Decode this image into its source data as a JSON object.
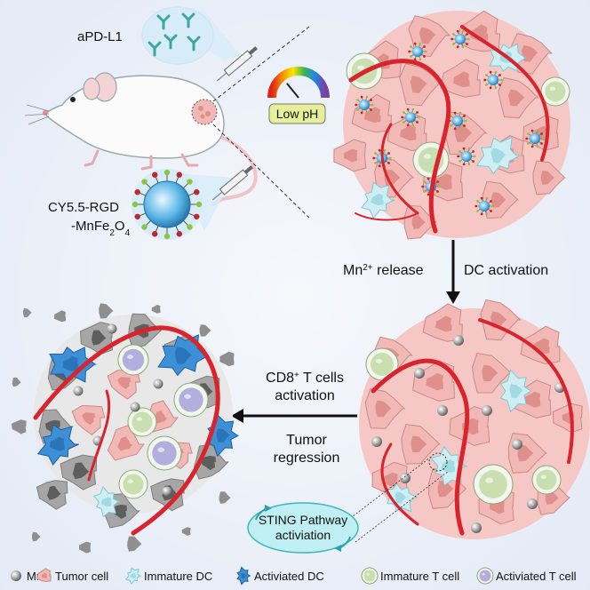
{
  "labels": {
    "apdl1": "aPD-L1",
    "cy55_line1": "CY5.5-RGD",
    "cy55_line2_pre": "-MnFe",
    "cy55_sub1": "2",
    "cy55_mid": "O",
    "cy55_sub2": "4",
    "low_ph": "Low pH",
    "mn_release_pre": "Mn",
    "mn_release_sup": "2+",
    "mn_release_post": " release",
    "dc_activation": "DC activation",
    "cd8_line1_pre": "CD8",
    "cd8_sup": "+",
    "cd8_line1_post": " T cells",
    "cd8_line2": "activation",
    "tumor_line1": "Tumor",
    "tumor_line2": "regression",
    "sting_line1": "STING Pathway",
    "sting_line2": "activiation"
  },
  "legend": [
    {
      "icon": "mn-ion-icon",
      "text": "Mn",
      "sup": "2+"
    },
    {
      "icon": "tumor-cell-icon",
      "text": "Tumor cell"
    },
    {
      "icon": "immature-dc-icon",
      "text": "Immature DC"
    },
    {
      "icon": "activated-dc-icon",
      "text": "Activiated DC"
    },
    {
      "icon": "immature-t-cell-icon",
      "text": "Immature T cell"
    },
    {
      "icon": "activated-t-cell-icon",
      "text": "Activiated T cell"
    }
  ],
  "colors": {
    "background": "#e9eff9",
    "tumor": "#f2b8b5",
    "tumor_dark": "#df8f8c",
    "vessel": "#d9232d",
    "immature_dc": "#cfeef3",
    "activated_dc": "#3d8fd6",
    "t_cell": "#c9dfb0",
    "activated_t": "#b3aedb",
    "dead_cell": "#a6a6a6",
    "mn": "#9a9a9a",
    "sting": "#bfeff2"
  }
}
